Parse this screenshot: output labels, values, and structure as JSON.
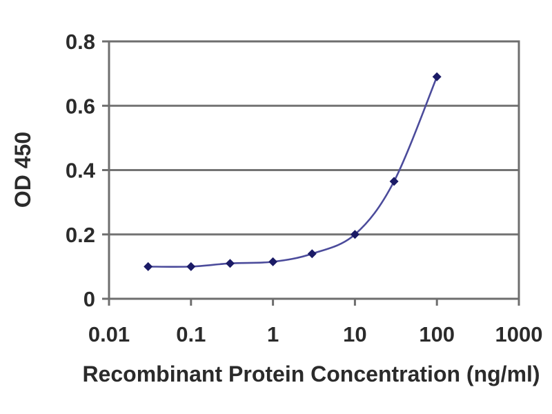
{
  "chart_data": {
    "type": "line",
    "x": [
      0.03,
      0.1,
      0.3,
      1,
      3,
      10,
      30,
      100
    ],
    "y": [
      0.1,
      0.1,
      0.11,
      0.115,
      0.14,
      0.2,
      0.365,
      0.69
    ],
    "title": "",
    "xlabel": "Recombinant Protein Concentration (ng/ml)",
    "ylabel": "OD 450",
    "x_scale": "log",
    "xlim": [
      0.01,
      1000
    ],
    "ylim": [
      0,
      0.8
    ],
    "x_ticks": [
      0.01,
      0.1,
      1,
      10,
      100,
      1000
    ],
    "x_tick_labels": [
      "0.01",
      "0.1",
      "1",
      "10",
      "100",
      "1000"
    ],
    "y_ticks": [
      0,
      0.2,
      0.4,
      0.6,
      0.8
    ],
    "y_tick_labels": [
      "0",
      "0.2",
      "0.4",
      "0.6",
      "0.8"
    ],
    "grid": "horizontal",
    "legend": "none",
    "marker": "diamond",
    "colors": {
      "line": "#4b4b9b",
      "marker": "#1b1b66",
      "grid": "#737373",
      "axis": "#6e6e6e",
      "text": "#2b2b2b",
      "background": "#ffffff"
    }
  }
}
